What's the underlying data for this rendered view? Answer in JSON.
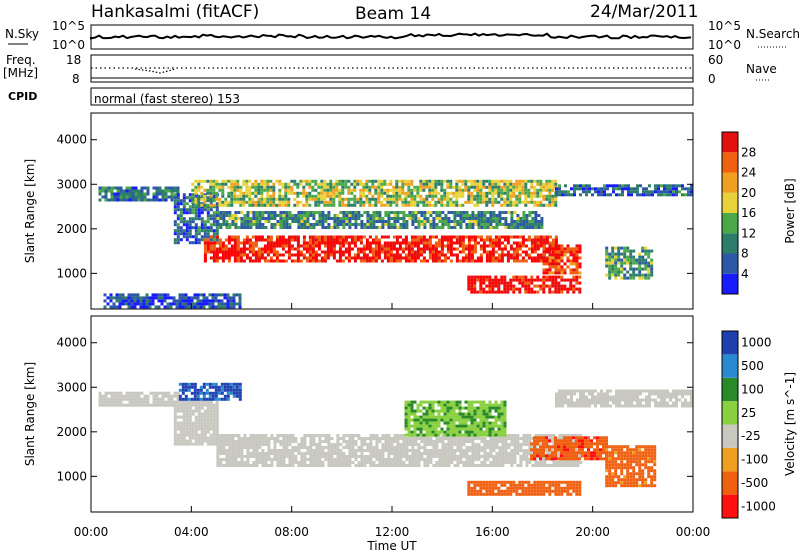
{
  "header": {
    "station": "Hankasalmi (fitACF)",
    "beam": "Beam 14",
    "date": "24/Mar/2011"
  },
  "status_panels": {
    "nsky": {
      "label": "N.Sky",
      "top_tick": "10^5",
      "bottom_tick": "10^0"
    },
    "nsearch": {
      "label": "N.Search",
      "top_tick": "10^5",
      "bottom_tick": "10^0"
    },
    "freq": {
      "label_line1": "Freq.",
      "label_line2": "[MHz]",
      "top_tick": "18",
      "bottom_tick": "8"
    },
    "nave": {
      "label": "Nave",
      "top_tick": "60",
      "bottom_tick": "0"
    },
    "cpid": {
      "label": "CPID",
      "text": "normal (fast stereo) 153"
    }
  },
  "colors": {
    "power": [
      "#1a1aff",
      "#2f57a8",
      "#2e7d6b",
      "#4aa84a",
      "#e8d23a",
      "#f0a020",
      "#f06010",
      "#e51010",
      "#ff0000"
    ],
    "velocity": [
      "#2040b0",
      "#2a8ad0",
      "#2a8a2a",
      "#8ad040",
      "#c8c8c0",
      "#f0a020",
      "#f06010",
      "#ff1010"
    ],
    "velocity_gray": "#c8c8c0"
  },
  "chart_data": [
    {
      "type": "heatmap",
      "name": "power-panel",
      "xlabel": "Time UT",
      "ylabel": "Slant Range [km]",
      "xlim": [
        0,
        24
      ],
      "ylim": [
        200,
        4600
      ],
      "yticks": [
        "1000",
        "2000",
        "3000",
        "4000"
      ],
      "colorbar": {
        "label": "Power [dB]",
        "ticks": [
          "4",
          "8",
          "12",
          "16",
          "20",
          "24",
          "28"
        ]
      },
      "bands": [
        {
          "t0": 0.3,
          "t1": 3.5,
          "r0": 2650,
          "r1": 2950,
          "level": 0.25
        },
        {
          "t0": 3.3,
          "t1": 5.0,
          "r0": 1700,
          "r1": 2800,
          "level": 0.2
        },
        {
          "t0": 4.0,
          "t1": 18.5,
          "r0": 2500,
          "r1": 3100,
          "level": 0.45
        },
        {
          "t0": 5.0,
          "t1": 18.0,
          "r0": 2050,
          "r1": 2400,
          "level": 0.3
        },
        {
          "t0": 4.5,
          "t1": 18.5,
          "r0": 1250,
          "r1": 1850,
          "level": 0.85
        },
        {
          "t0": 15.0,
          "t1": 19.5,
          "r0": 600,
          "r1": 950,
          "level": 0.9
        },
        {
          "t0": 18.0,
          "t1": 19.5,
          "r0": 1000,
          "r1": 1650,
          "level": 0.8
        },
        {
          "t0": 20.5,
          "t1": 22.3,
          "r0": 900,
          "r1": 1600,
          "level": 0.35
        },
        {
          "t0": 18.5,
          "t1": 24.0,
          "r0": 2750,
          "r1": 3000,
          "level": 0.2
        },
        {
          "t0": 0.5,
          "t1": 6.0,
          "r0": 250,
          "r1": 550,
          "level": 0.15
        }
      ]
    },
    {
      "type": "heatmap",
      "name": "velocity-panel",
      "xlabel": "Time UT",
      "ylabel": "Slant Range [km]",
      "xlim": [
        0,
        24
      ],
      "ylim": [
        200,
        4600
      ],
      "xticks": [
        "00:00",
        "04:00",
        "08:00",
        "12:00",
        "16:00",
        "20:00",
        "00:00"
      ],
      "yticks": [
        "1000",
        "2000",
        "3000",
        "4000"
      ],
      "colorbar": {
        "label": "Velocity [m s^-1]",
        "ticks": [
          "1000",
          "500",
          "100",
          "25",
          "-25",
          "-100",
          "-500",
          "-1000"
        ]
      },
      "bands": [
        {
          "t0": 0.3,
          "t1": 3.5,
          "r0": 2600,
          "r1": 2900,
          "level": 0.0
        },
        {
          "t0": 3.3,
          "t1": 5.0,
          "r0": 1700,
          "r1": 2700,
          "level": 0.0
        },
        {
          "t0": 3.5,
          "t1": 6.0,
          "r0": 2700,
          "r1": 3100,
          "level": 600
        },
        {
          "t0": 5.0,
          "t1": 19.5,
          "r0": 1250,
          "r1": 1950,
          "level": 0.0
        },
        {
          "t0": 12.5,
          "t1": 16.5,
          "r0": 1900,
          "r1": 2700,
          "level": 90
        },
        {
          "t0": 17.5,
          "t1": 20.5,
          "r0": 1400,
          "r1": 1900,
          "level": -400
        },
        {
          "t0": 15.0,
          "t1": 19.5,
          "r0": 600,
          "r1": 900,
          "level": -200
        },
        {
          "t0": 20.5,
          "t1": 22.5,
          "r0": 800,
          "r1": 1700,
          "level": -150
        },
        {
          "t0": 18.5,
          "t1": 24.0,
          "r0": 2600,
          "r1": 2950,
          "level": 0.0
        }
      ]
    }
  ]
}
